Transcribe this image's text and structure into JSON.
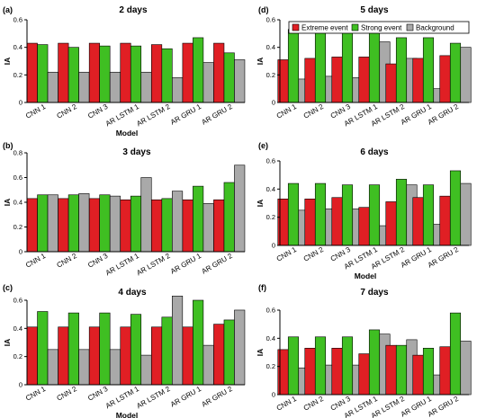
{
  "colors": {
    "extreme": "#e01f24",
    "strong": "#3fbf22",
    "background": "#a9a9a9"
  },
  "legend": {
    "extreme": "Extreme event",
    "strong": "Strong event",
    "background": "Background"
  },
  "chart_data": [
    {
      "panel": "(a)",
      "title": "2 days",
      "type": "bar",
      "xlabel": "Model",
      "ylabel": "IA",
      "ylim": [
        0,
        0.6
      ],
      "yticks": [
        "0",
        "0.2",
        "0.4",
        "0.6"
      ],
      "categories": [
        "CNN 1",
        "CNN 2",
        "CNN 3",
        "AR LSTM 1",
        "AR LSTM 2",
        "AR GRU 1",
        "AR GRU 2"
      ],
      "series": [
        {
          "key": "extreme",
          "values": [
            0.43,
            0.43,
            0.43,
            0.43,
            0.42,
            0.43,
            0.43
          ]
        },
        {
          "key": "strong",
          "values": [
            0.42,
            0.4,
            0.41,
            0.41,
            0.39,
            0.47,
            0.36
          ]
        },
        {
          "key": "background",
          "values": [
            0.22,
            0.22,
            0.22,
            0.22,
            0.18,
            0.29,
            0.31
          ]
        }
      ]
    },
    {
      "panel": "(b)",
      "title": "3 days",
      "type": "bar",
      "xlabel": "",
      "ylabel": "IA",
      "ylim": [
        0,
        0.8
      ],
      "yticks": [
        "0",
        "0.2",
        "0.4",
        "0.6",
        "0.8"
      ],
      "categories": [
        "CNN 1",
        "CNN 2",
        "CNN 3",
        "AR LSTM 1",
        "AR LSTM 2",
        "AR GRU 1",
        "AR GRU 2"
      ],
      "series": [
        {
          "key": "extreme",
          "values": [
            0.43,
            0.43,
            0.43,
            0.42,
            0.42,
            0.42,
            0.42
          ]
        },
        {
          "key": "strong",
          "values": [
            0.46,
            0.46,
            0.46,
            0.45,
            0.43,
            0.53,
            0.56
          ]
        },
        {
          "key": "background",
          "values": [
            0.46,
            0.47,
            0.45,
            0.6,
            0.49,
            0.39,
            0.7
          ]
        }
      ]
    },
    {
      "panel": "(c)",
      "title": "4 days",
      "type": "bar",
      "xlabel": "Model",
      "ylabel": "IA",
      "ylim": [
        0,
        0.6
      ],
      "yticks": [
        "0",
        "0.2",
        "0.4",
        "0.6"
      ],
      "categories": [
        "CNN 1",
        "CNN 2",
        "CNN 3",
        "AR LSTM 1",
        "AR LSTM 2",
        "AR GRU 1",
        "AR GRU 2"
      ],
      "series": [
        {
          "key": "extreme",
          "values": [
            0.41,
            0.41,
            0.41,
            0.41,
            0.41,
            0.41,
            0.43
          ]
        },
        {
          "key": "strong",
          "values": [
            0.52,
            0.51,
            0.51,
            0.5,
            0.48,
            0.6,
            0.46
          ]
        },
        {
          "key": "background",
          "values": [
            0.25,
            0.25,
            0.25,
            0.21,
            0.63,
            0.28,
            0.53
          ]
        }
      ]
    },
    {
      "panel": "(d)",
      "title": "5 days",
      "type": "bar",
      "xlabel": "",
      "ylabel": "IA",
      "ylim": [
        0,
        0.6
      ],
      "yticks": [
        "0",
        "0.2",
        "0.4",
        "0.6"
      ],
      "legend_position": "top-right",
      "categories": [
        "CNN 1",
        "CNN 2",
        "CNN 3",
        "AR LSTM 1",
        "AR LSTM 2",
        "AR GRU 1",
        "AR GRU 2"
      ],
      "series": [
        {
          "key": "extreme",
          "values": [
            0.31,
            0.32,
            0.33,
            0.33,
            0.28,
            0.32,
            0.34
          ]
        },
        {
          "key": "strong",
          "values": [
            0.53,
            0.52,
            0.51,
            0.54,
            0.47,
            0.47,
            0.43
          ]
        },
        {
          "key": "background",
          "values": [
            0.17,
            0.19,
            0.18,
            0.44,
            0.32,
            0.1,
            0.4
          ]
        }
      ]
    },
    {
      "panel": "(e)",
      "title": "6 days",
      "type": "bar",
      "xlabel": "Model",
      "ylabel": "IA",
      "ylim": [
        0,
        0.6
      ],
      "yticks": [
        "0",
        "0.2",
        "0.4",
        "0.6"
      ],
      "categories": [
        "CNN 1",
        "CNN 2",
        "CNN 3",
        "AR LSTM 1",
        "AR LSTM 2",
        "AR GRU 1",
        "AR GRU 2"
      ],
      "series": [
        {
          "key": "extreme",
          "values": [
            0.33,
            0.33,
            0.34,
            0.27,
            0.31,
            0.34,
            0.35
          ]
        },
        {
          "key": "strong",
          "values": [
            0.44,
            0.44,
            0.43,
            0.43,
            0.47,
            0.43,
            0.53
          ]
        },
        {
          "key": "background",
          "values": [
            0.25,
            0.26,
            0.26,
            0.14,
            0.43,
            0.15,
            0.44
          ]
        }
      ]
    },
    {
      "panel": "(f)",
      "title": "7 days",
      "type": "bar",
      "xlabel": "Model",
      "ylabel": "IA",
      "ylim": [
        0,
        0.6
      ],
      "yticks": [
        "0",
        "0.2",
        "0.4",
        "0.6"
      ],
      "categories": [
        "CNN 1",
        "CNN 2",
        "CNN 3",
        "AR LSTM 1",
        "AR LSTM 2",
        "AR GRU 1",
        "AR GRU 2"
      ],
      "series": [
        {
          "key": "extreme",
          "values": [
            0.32,
            0.33,
            0.33,
            0.29,
            0.35,
            0.28,
            0.34
          ]
        },
        {
          "key": "strong",
          "values": [
            0.41,
            0.41,
            0.41,
            0.46,
            0.35,
            0.33,
            0.58
          ]
        },
        {
          "key": "background",
          "values": [
            0.19,
            0.21,
            0.21,
            0.43,
            0.39,
            0.14,
            0.38
          ]
        }
      ]
    }
  ]
}
